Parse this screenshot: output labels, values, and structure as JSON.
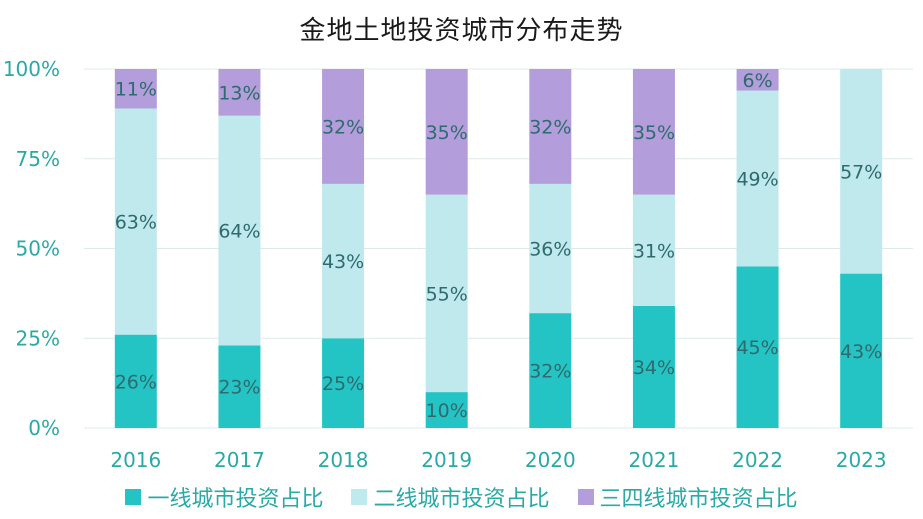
{
  "chart_data": {
    "type": "bar",
    "stacked": true,
    "title": "金地土地投资城市分布走势",
    "categories": [
      "2016",
      "2017",
      "2018",
      "2019",
      "2020",
      "2021",
      "2022",
      "2023"
    ],
    "series": [
      {
        "name": "一线城市投资占比",
        "values": [
          26,
          23,
          25,
          10,
          32,
          34,
          45,
          43
        ],
        "labels": [
          "26%",
          "23%",
          "25%",
          "10%",
          "32%",
          "34%",
          "45%",
          "43%"
        ],
        "color": "#24c4c4"
      },
      {
        "name": "二线城市投资占比",
        "values": [
          63,
          64,
          43,
          55,
          36,
          31,
          49,
          57
        ],
        "labels": [
          "63%",
          "64%",
          "43%",
          "55%",
          "36%",
          "31%",
          "49%",
          "57%"
        ],
        "color": "#bfe9ec"
      },
      {
        "name": "三四线城市投资占比",
        "values": [
          11,
          13,
          32,
          35,
          32,
          35,
          6,
          0
        ],
        "labels": [
          "11%",
          "13%",
          "32%",
          "35%",
          "32%",
          "35%",
          "6%",
          ""
        ],
        "color": "#b39ddb"
      }
    ],
    "ylim": [
      0,
      100
    ],
    "yticks": [
      "0%",
      "25%",
      "50%",
      "75%",
      "100%"
    ],
    "xlabel": "",
    "ylabel": "",
    "grid": true,
    "legend_position": "bottom"
  }
}
